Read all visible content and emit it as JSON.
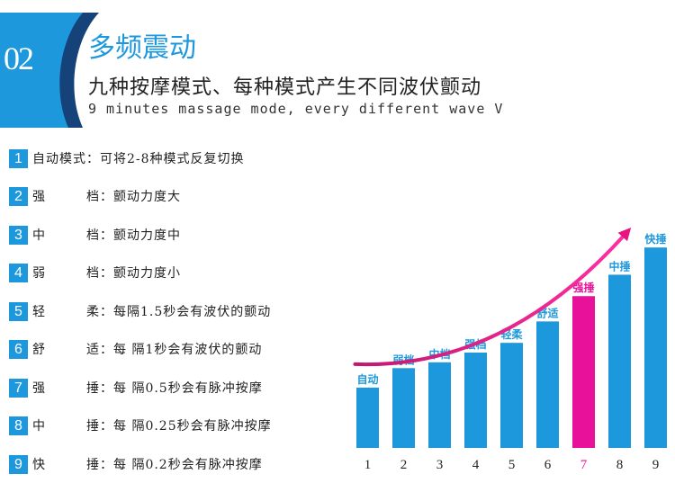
{
  "header": {
    "badge_number": "02",
    "title": "多频震动",
    "subtitle": "九种按摩模式、每种模式产生不同波伏颤动",
    "english": "9 minutes massage mode, every different wave V"
  },
  "modes": [
    {
      "num": "1",
      "text": "自动模式：可将2-8种模式反复切换"
    },
    {
      "num": "2",
      "text": "强　　　档：颤动力度大"
    },
    {
      "num": "3",
      "text": "中　　　档：颤动力度中"
    },
    {
      "num": "4",
      "text": "弱　　　档：颤动力度小"
    },
    {
      "num": "5",
      "text": "轻　　　柔：每隔1.5秒会有波伏的颤动"
    },
    {
      "num": "6",
      "text": "舒　　　适：每 隔1秒会有波伏的颤动"
    },
    {
      "num": "7",
      "text": "强　　　捶：每 隔0.5秒会有脉冲按摩"
    },
    {
      "num": "8",
      "text": "中　　　捶：每 隔0.25秒会有脉冲按摩"
    },
    {
      "num": "9",
      "text": "快　　　捶：每 隔0.2秒会有脉冲按摩"
    }
  ],
  "colors": {
    "accent_blue": "#1e98dc",
    "highlight_pink": "#e8129a",
    "arrow": "#e8147f",
    "badge_dark": "#16427a"
  },
  "chart_data": {
    "type": "bar",
    "categories": [
      "1",
      "2",
      "3",
      "4",
      "5",
      "6",
      "7",
      "8",
      "9"
    ],
    "values": [
      3.1,
      4.1,
      4.4,
      4.9,
      5.4,
      6.5,
      7.8,
      8.9,
      10.3
    ],
    "bar_labels": [
      "自动",
      "弱档",
      "中档",
      "强档",
      "轻柔",
      "舒适",
      "强捶",
      "中捶",
      "快捶"
    ],
    "highlight_index": 6,
    "title": "",
    "xlabel": "",
    "ylabel": "",
    "ylim": [
      0,
      11
    ],
    "grid": false,
    "trend_arrow": true
  }
}
